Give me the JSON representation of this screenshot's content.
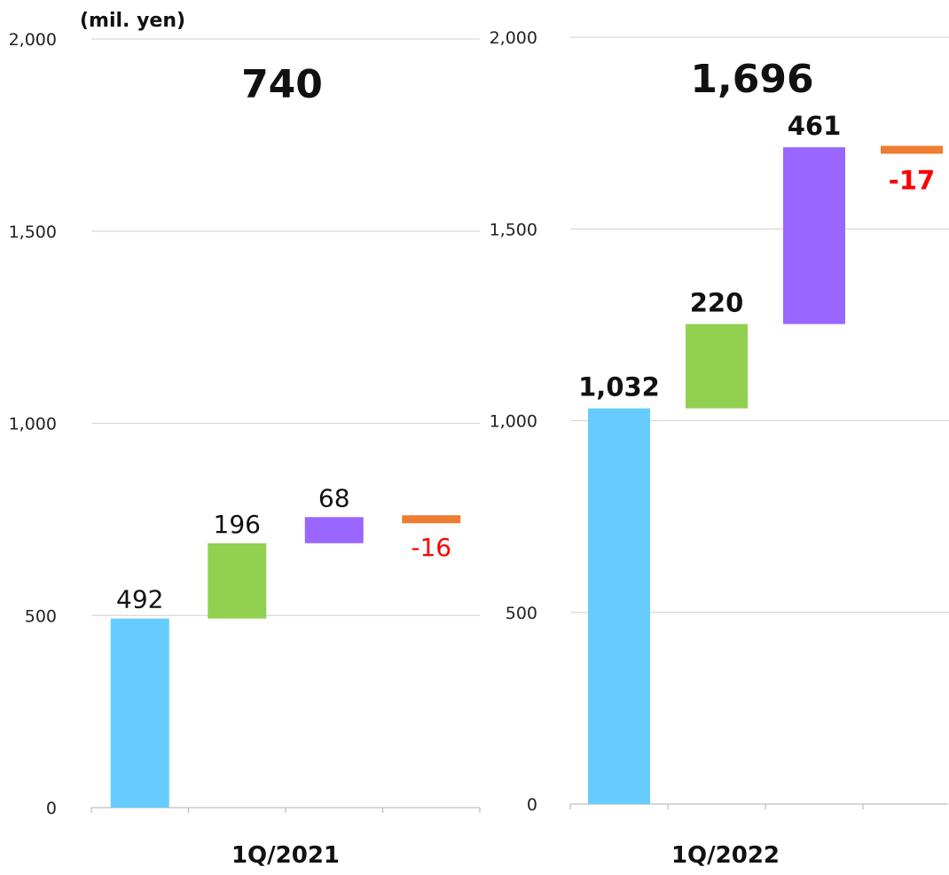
{
  "chart_data": [
    {
      "type": "bar",
      "subtype": "waterfall",
      "unit_label": "(mil. yen)",
      "total_label": "740",
      "category_label": "1Q/2021",
      "ylim": [
        0,
        2000
      ],
      "yticks": [
        "0",
        "500",
        "1,000",
        "1,500",
        "2,000"
      ],
      "grid": true,
      "bold_labels": false,
      "series": [
        {
          "value": 492,
          "base": 0,
          "label": "492",
          "color": "#66ccff",
          "label_color": "#111111"
        },
        {
          "value": 196,
          "base": 492,
          "label": "196",
          "color": "#92d050",
          "label_color": "#111111"
        },
        {
          "value": 68,
          "base": 688,
          "label": "68",
          "color": "#9966ff",
          "label_color": "#111111"
        },
        {
          "value": -16,
          "base": 756,
          "label": "-16",
          "color": "#ed7d31",
          "label_color": "#ff0000"
        }
      ]
    },
    {
      "type": "bar",
      "subtype": "waterfall",
      "unit_label": "",
      "total_label": "1,696",
      "category_label": "1Q/2022",
      "ylim": [
        0,
        2000
      ],
      "yticks": [
        "0",
        "500",
        "1,000",
        "1,500",
        "2,000"
      ],
      "grid": true,
      "bold_labels": true,
      "series": [
        {
          "value": 1032,
          "base": 0,
          "label": "1,032",
          "color": "#66ccff",
          "label_color": "#111111"
        },
        {
          "value": 220,
          "base": 1032,
          "label": "220",
          "color": "#92d050",
          "label_color": "#111111"
        },
        {
          "value": 461,
          "base": 1252,
          "label": "461",
          "color": "#9966ff",
          "label_color": "#111111"
        },
        {
          "value": -17,
          "base": 1713,
          "label": "-17",
          "color": "#ed7d31",
          "label_color": "#ff0000"
        }
      ]
    }
  ]
}
